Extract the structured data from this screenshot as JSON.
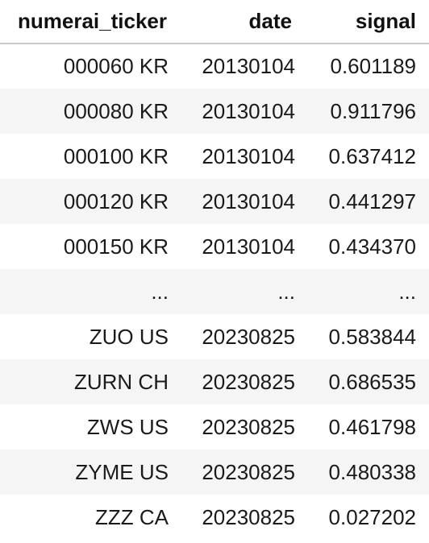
{
  "table": {
    "columns": [
      "numerai_ticker",
      "date",
      "signal"
    ],
    "rows": [
      {
        "ticker": "000060 KR",
        "date": "20130104",
        "signal": "0.601189"
      },
      {
        "ticker": "000080 KR",
        "date": "20130104",
        "signal": "0.911796"
      },
      {
        "ticker": "000100 KR",
        "date": "20130104",
        "signal": "0.637412"
      },
      {
        "ticker": "000120 KR",
        "date": "20130104",
        "signal": "0.441297"
      },
      {
        "ticker": "000150 KR",
        "date": "20130104",
        "signal": "0.434370"
      },
      {
        "ticker": "...",
        "date": "...",
        "signal": "..."
      },
      {
        "ticker": "ZUO US",
        "date": "20230825",
        "signal": "0.583844"
      },
      {
        "ticker": "ZURN CH",
        "date": "20230825",
        "signal": "0.686535"
      },
      {
        "ticker": "ZWS US",
        "date": "20230825",
        "signal": "0.461798"
      },
      {
        "ticker": "ZYME US",
        "date": "20230825",
        "signal": "0.480338"
      },
      {
        "ticker": "ZZZ CA",
        "date": "20230825",
        "signal": "0.027202"
      }
    ]
  }
}
